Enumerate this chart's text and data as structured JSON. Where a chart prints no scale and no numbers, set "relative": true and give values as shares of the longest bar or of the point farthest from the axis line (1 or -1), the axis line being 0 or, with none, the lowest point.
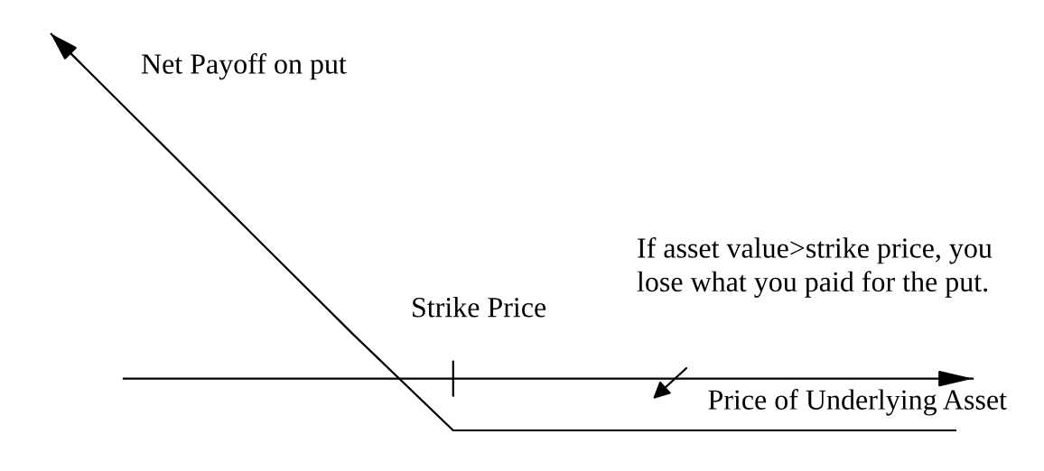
{
  "chart_data": {
    "type": "line",
    "relative": true,
    "xlabel": "Price of Underlying Asset",
    "categories": [
      null,
      null,
      null,
      null,
      null,
      null,
      null,
      null,
      null,
      null
    ],
    "series": [
      {
        "name": "Net Payoff on put",
        "color": "#000000",
        "values": [
          1,
          0.71,
          0.42,
          0.13,
          -0.15,
          -0.15,
          -0.15,
          -0.15,
          -0.15,
          -0.15
        ]
      }
    ],
    "line_style": "solid",
    "annotations": [
      "Strike Price",
      "If asset value>strike price, you lose what you paid for the put."
    ]
  }
}
